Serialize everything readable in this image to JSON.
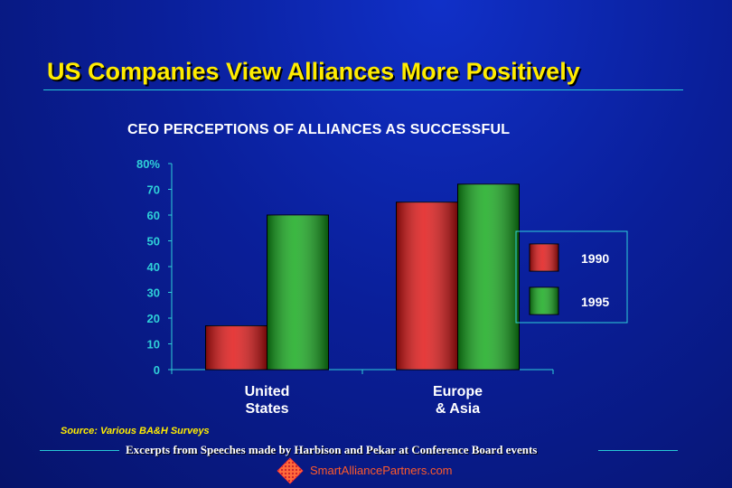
{
  "slide": {
    "title": "US Companies View Alliances More Positively",
    "source_note": "Source: Various BA&H Surveys",
    "footer_text": "Excerpts from Speeches made by Harbison and Pekar at Conference Board events",
    "logo_text": "SmartAlliancePartners.com",
    "logo_icon": "diamond-grid-logo-icon"
  },
  "colors": {
    "background": "#0a1f9a",
    "title": "#ffec00",
    "accent_rule": "#27c8d6",
    "axis_tick_text": "#2fd0d8",
    "series_1990": "#e01010",
    "series_1995": "#10a818"
  },
  "chart_data": {
    "type": "bar",
    "title": "CEO PERCEPTIONS OF ALLIANCES AS SUCCESSFUL",
    "xlabel": "",
    "ylabel": "",
    "ylim": [
      0,
      80
    ],
    "yticks": [
      "0",
      "10",
      "20",
      "30",
      "40",
      "50",
      "60",
      "70",
      "80%"
    ],
    "categories": [
      [
        "United",
        "States"
      ],
      [
        "Europe",
        "& Asia"
      ]
    ],
    "series": [
      {
        "name": "1990",
        "values": [
          17,
          65
        ],
        "color": "#e01010"
      },
      {
        "name": "1995",
        "values": [
          60,
          72
        ],
        "color": "#10a818"
      }
    ],
    "legend_position": "right",
    "grid": false
  }
}
